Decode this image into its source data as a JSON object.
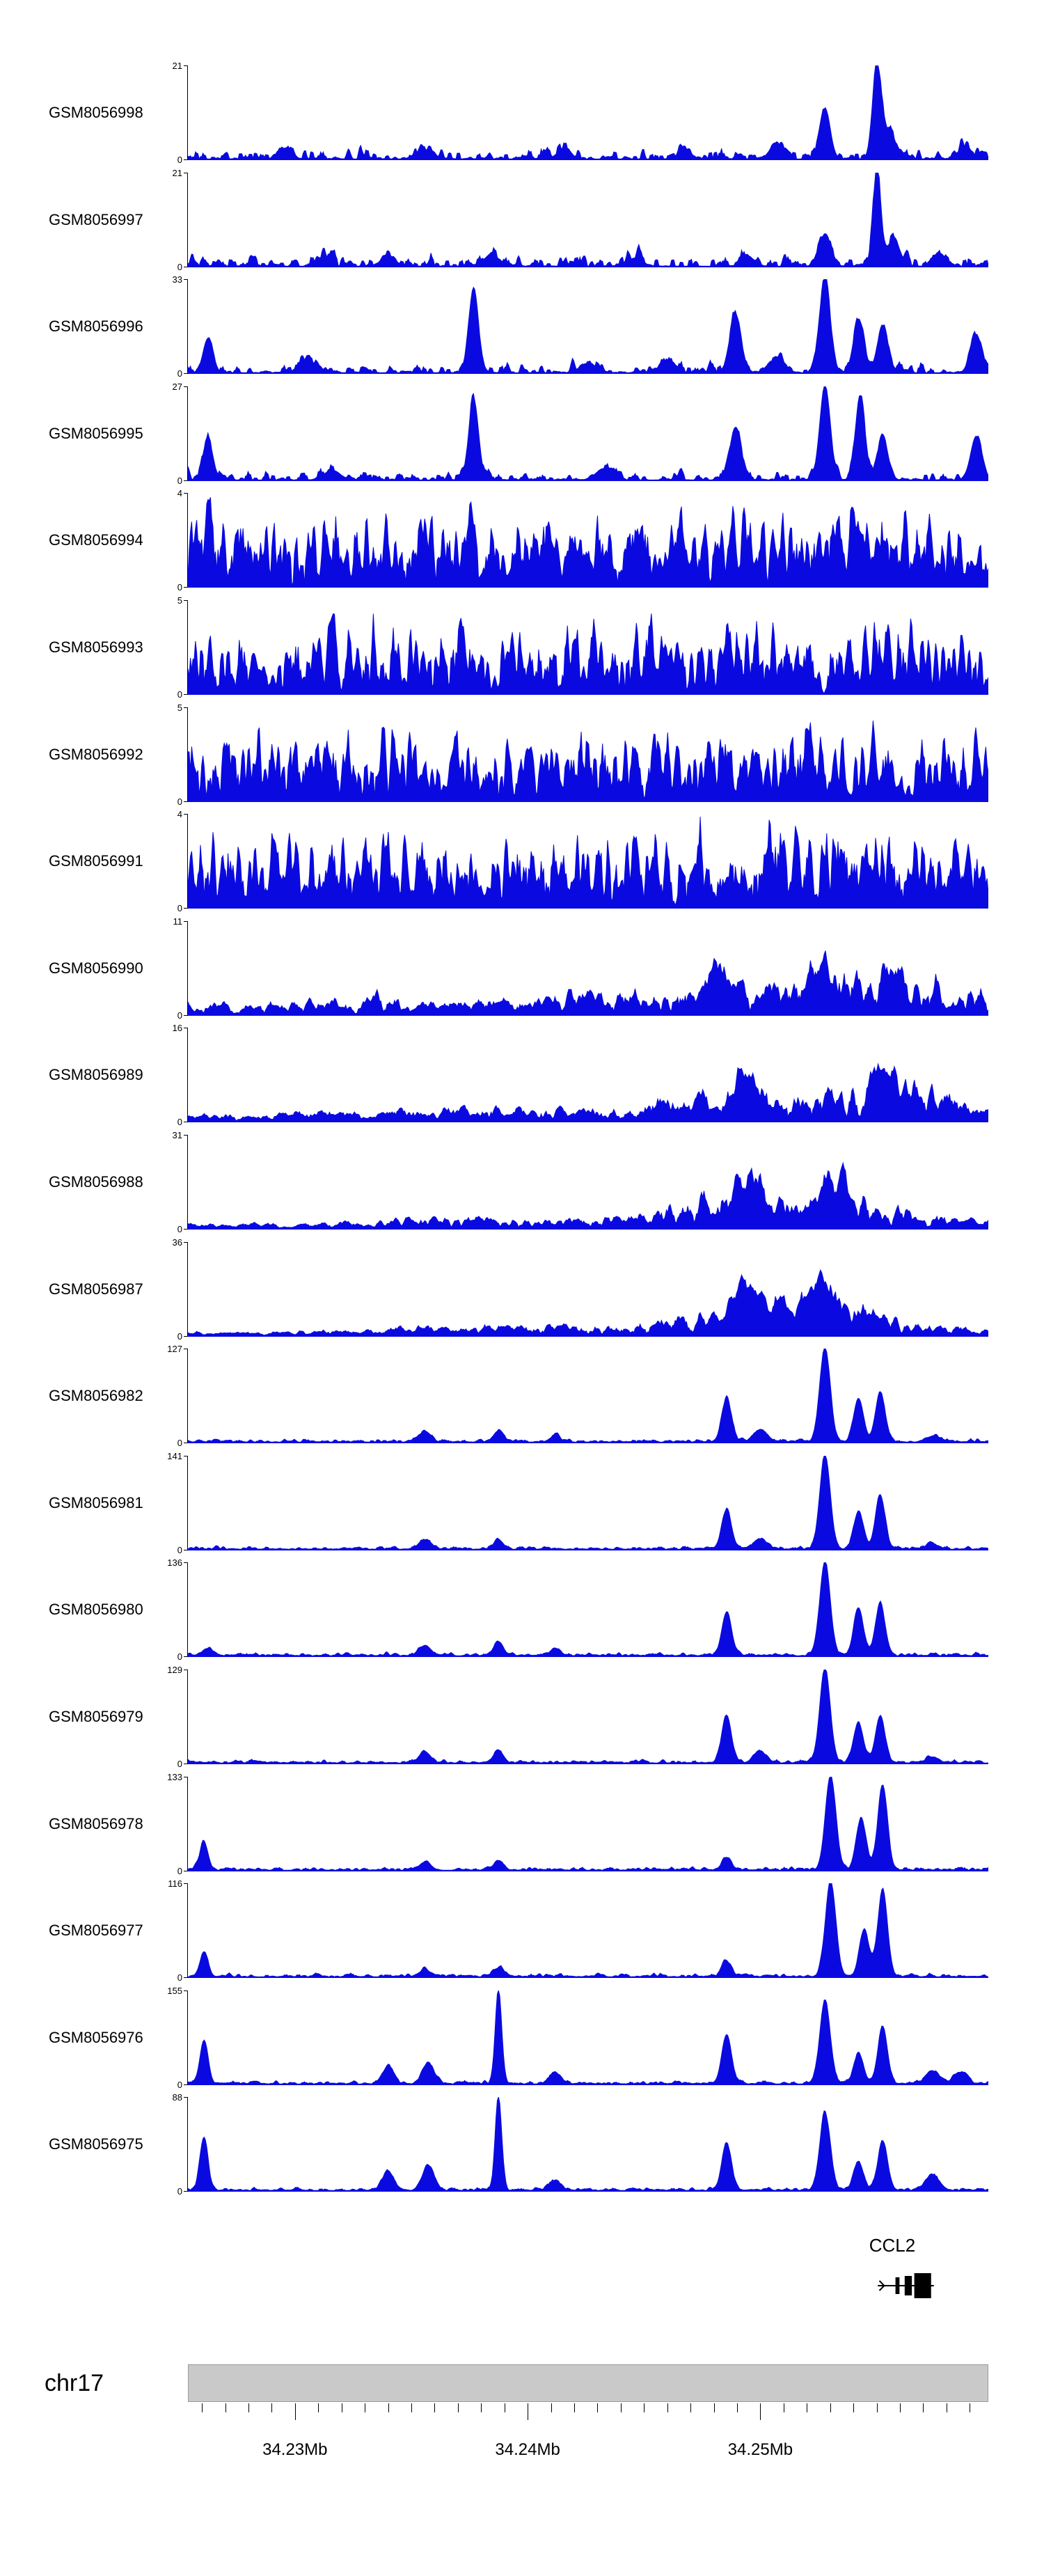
{
  "style": {
    "signal_color": "#0a0ae0",
    "axis_color": "#000000",
    "ideogram_fill": "#c9c9c9",
    "background": "#ffffff",
    "text_color": "#000000"
  },
  "chart_data": {
    "type": "area",
    "title": "",
    "description": "Genome-browser read-coverage tracks (20 GSM samples) over chr17 ~34.225-34.260 Mb around the CCL2 gene. Each track is a blue filled coverage signal with y-axis from 0 to the indicated max. Peaks are given as [position_fraction_of_window, height_fraction_of_ymax, width_fraction]; noise parameters describe the background signal texture.",
    "y_min_label": "0",
    "legend": "none",
    "grid": false,
    "tracks": [
      {
        "label": "GSM8056998",
        "ymax": 21,
        "seed": 101,
        "noise": 0.2,
        "noise_pow": 4.5,
        "smooth": 1,
        "peaks": [
          [
            0.12,
            0.1,
            0.008
          ],
          [
            0.3,
            0.09,
            0.008
          ],
          [
            0.47,
            0.11,
            0.008
          ],
          [
            0.62,
            0.09,
            0.008
          ],
          [
            0.735,
            0.16,
            0.008
          ],
          [
            0.796,
            0.52,
            0.0065
          ],
          [
            0.861,
            1.0,
            0.0055
          ],
          [
            0.878,
            0.26,
            0.007
          ],
          [
            0.97,
            0.12,
            0.008
          ]
        ]
      },
      {
        "label": "GSM8056997",
        "ymax": 21,
        "seed": 102,
        "noise": 0.2,
        "noise_pow": 4.5,
        "smooth": 1,
        "peaks": [
          [
            0.17,
            0.1,
            0.008
          ],
          [
            0.25,
            0.12,
            0.008
          ],
          [
            0.38,
            0.13,
            0.008
          ],
          [
            0.56,
            0.09,
            0.008
          ],
          [
            0.7,
            0.1,
            0.008
          ],
          [
            0.796,
            0.34,
            0.007
          ],
          [
            0.861,
            1.0,
            0.005
          ],
          [
            0.882,
            0.3,
            0.007
          ],
          [
            0.94,
            0.12,
            0.008
          ]
        ]
      },
      {
        "label": "GSM8056996",
        "ymax": 33,
        "seed": 103,
        "noise": 0.16,
        "noise_pow": 5,
        "smooth": 1,
        "peaks": [
          [
            0.025,
            0.36,
            0.006
          ],
          [
            0.15,
            0.12,
            0.01
          ],
          [
            0.357,
            0.88,
            0.006
          ],
          [
            0.5,
            0.1,
            0.01
          ],
          [
            0.6,
            0.12,
            0.01
          ],
          [
            0.684,
            0.62,
            0.007
          ],
          [
            0.735,
            0.14,
            0.01
          ],
          [
            0.796,
            1.0,
            0.0065
          ],
          [
            0.838,
            0.56,
            0.0065
          ],
          [
            0.868,
            0.5,
            0.0065
          ],
          [
            0.985,
            0.4,
            0.007
          ]
        ]
      },
      {
        "label": "GSM8056995",
        "ymax": 27,
        "seed": 104,
        "noise": 0.16,
        "noise_pow": 5,
        "smooth": 1,
        "peaks": [
          [
            0.025,
            0.42,
            0.006
          ],
          [
            0.18,
            0.1,
            0.01
          ],
          [
            0.357,
            0.86,
            0.006
          ],
          [
            0.52,
            0.12,
            0.01
          ],
          [
            0.684,
            0.55,
            0.007
          ],
          [
            0.796,
            1.0,
            0.0065
          ],
          [
            0.84,
            0.88,
            0.006
          ],
          [
            0.868,
            0.46,
            0.0065
          ],
          [
            0.985,
            0.46,
            0.007
          ]
        ]
      },
      {
        "label": "GSM8056994",
        "ymax": 4,
        "seed": 105,
        "noise": 1.0,
        "noise_pow": 1.5,
        "smooth": 1,
        "peaks": []
      },
      {
        "label": "GSM8056993",
        "ymax": 5,
        "seed": 106,
        "noise": 0.95,
        "noise_pow": 1.7,
        "smooth": 1,
        "peaks": []
      },
      {
        "label": "GSM8056992",
        "ymax": 5,
        "seed": 107,
        "noise": 0.95,
        "noise_pow": 1.7,
        "smooth": 1,
        "peaks": []
      },
      {
        "label": "GSM8056991",
        "ymax": 4,
        "seed": 108,
        "noise": 1.0,
        "noise_pow": 1.5,
        "smooth": 1,
        "peaks": []
      },
      {
        "label": "GSM8056990",
        "ymax": 11,
        "seed": 109,
        "noise": 0.7,
        "noise_pow": 1.9,
        "smooth": 2,
        "noise_env": [
          [
            0,
            0.3
          ],
          [
            0.15,
            0.35
          ],
          [
            0.22,
            0.55
          ],
          [
            0.3,
            0.5
          ],
          [
            0.42,
            0.45
          ],
          [
            0.5,
            0.55
          ],
          [
            0.6,
            0.65
          ],
          [
            0.68,
            0.8
          ],
          [
            0.78,
            1.0
          ],
          [
            0.9,
            1.0
          ],
          [
            1,
            0.75
          ]
        ],
        "peaks": [
          [
            0.66,
            0.25,
            0.012
          ],
          [
            0.79,
            0.3,
            0.012
          ],
          [
            0.88,
            0.3,
            0.012
          ]
        ]
      },
      {
        "label": "GSM8056989",
        "ymax": 16,
        "seed": 110,
        "noise": 0.65,
        "noise_pow": 1.9,
        "smooth": 2,
        "noise_env": [
          [
            0,
            0.18
          ],
          [
            0.15,
            0.25
          ],
          [
            0.3,
            0.35
          ],
          [
            0.45,
            0.4
          ],
          [
            0.55,
            0.5
          ],
          [
            0.63,
            0.7
          ],
          [
            0.72,
            0.85
          ],
          [
            0.8,
            0.8
          ],
          [
            0.87,
            1.0
          ],
          [
            0.93,
            0.85
          ],
          [
            1,
            0.5
          ]
        ],
        "peaks": [
          [
            0.7,
            0.3,
            0.015
          ],
          [
            0.87,
            0.45,
            0.01
          ]
        ]
      },
      {
        "label": "GSM8056988",
        "ymax": 31,
        "seed": 111,
        "noise": 0.6,
        "noise_pow": 1.8,
        "smooth": 2,
        "noise_env": [
          [
            0,
            0.15
          ],
          [
            0.2,
            0.18
          ],
          [
            0.3,
            0.35
          ],
          [
            0.4,
            0.3
          ],
          [
            0.5,
            0.28
          ],
          [
            0.58,
            0.5
          ],
          [
            0.65,
            0.9
          ],
          [
            0.72,
            1.0
          ],
          [
            0.82,
            1.0
          ],
          [
            0.88,
            0.7
          ],
          [
            0.95,
            0.35
          ],
          [
            1,
            0.25
          ]
        ],
        "peaks": [
          [
            0.7,
            0.35,
            0.02
          ],
          [
            0.8,
            0.3,
            0.02
          ]
        ]
      },
      {
        "label": "GSM8056987",
        "ymax": 36,
        "seed": 112,
        "noise": 0.6,
        "noise_pow": 1.8,
        "smooth": 2,
        "noise_env": [
          [
            0,
            0.12
          ],
          [
            0.2,
            0.15
          ],
          [
            0.3,
            0.3
          ],
          [
            0.42,
            0.28
          ],
          [
            0.52,
            0.3
          ],
          [
            0.6,
            0.55
          ],
          [
            0.68,
            1.0
          ],
          [
            0.78,
            0.95
          ],
          [
            0.85,
            0.75
          ],
          [
            0.93,
            0.4
          ],
          [
            1,
            0.2
          ]
        ],
        "peaks": [
          [
            0.7,
            0.4,
            0.02
          ],
          [
            0.79,
            0.3,
            0.02
          ]
        ]
      },
      {
        "label": "GSM8056982",
        "ymax": 127,
        "seed": 113,
        "noise": 0.05,
        "noise_pow": 3,
        "smooth": 1,
        "peaks": [
          [
            0.296,
            0.11,
            0.007
          ],
          [
            0.388,
            0.12,
            0.006
          ],
          [
            0.459,
            0.07,
            0.006
          ],
          [
            0.673,
            0.46,
            0.006
          ],
          [
            0.715,
            0.13,
            0.008
          ],
          [
            0.796,
            1.0,
            0.0065
          ],
          [
            0.838,
            0.46,
            0.006
          ],
          [
            0.865,
            0.52,
            0.006
          ],
          [
            0.93,
            0.06,
            0.008
          ]
        ]
      },
      {
        "label": "GSM8056981",
        "ymax": 141,
        "seed": 114,
        "noise": 0.05,
        "noise_pow": 3,
        "smooth": 1,
        "peaks": [
          [
            0.296,
            0.1,
            0.007
          ],
          [
            0.388,
            0.1,
            0.006
          ],
          [
            0.673,
            0.42,
            0.006
          ],
          [
            0.715,
            0.11,
            0.008
          ],
          [
            0.796,
            1.0,
            0.0065
          ],
          [
            0.838,
            0.4,
            0.006
          ],
          [
            0.865,
            0.56,
            0.006
          ],
          [
            0.93,
            0.05,
            0.008
          ]
        ]
      },
      {
        "label": "GSM8056980",
        "ymax": 136,
        "seed": 115,
        "noise": 0.05,
        "noise_pow": 3,
        "smooth": 1,
        "peaks": [
          [
            0.025,
            0.07,
            0.006
          ],
          [
            0.296,
            0.1,
            0.007
          ],
          [
            0.388,
            0.15,
            0.006
          ],
          [
            0.459,
            0.08,
            0.006
          ],
          [
            0.673,
            0.46,
            0.006
          ],
          [
            0.796,
            1.0,
            0.0065
          ],
          [
            0.838,
            0.5,
            0.006
          ],
          [
            0.865,
            0.55,
            0.006
          ]
        ]
      },
      {
        "label": "GSM8056979",
        "ymax": 129,
        "seed": 116,
        "noise": 0.05,
        "noise_pow": 3,
        "smooth": 1,
        "peaks": [
          [
            0.296,
            0.12,
            0.007
          ],
          [
            0.388,
            0.13,
            0.006
          ],
          [
            0.673,
            0.5,
            0.006
          ],
          [
            0.715,
            0.12,
            0.008
          ],
          [
            0.796,
            1.0,
            0.0065
          ],
          [
            0.838,
            0.42,
            0.006
          ],
          [
            0.865,
            0.5,
            0.006
          ],
          [
            0.93,
            0.06,
            0.008
          ]
        ]
      },
      {
        "label": "GSM8056978",
        "ymax": 133,
        "seed": 117,
        "noise": 0.05,
        "noise_pow": 3,
        "smooth": 1,
        "peaks": [
          [
            0.02,
            0.3,
            0.005
          ],
          [
            0.296,
            0.08,
            0.007
          ],
          [
            0.388,
            0.1,
            0.006
          ],
          [
            0.673,
            0.13,
            0.006
          ],
          [
            0.803,
            1.0,
            0.0065
          ],
          [
            0.841,
            0.55,
            0.006
          ],
          [
            0.868,
            0.9,
            0.006
          ]
        ]
      },
      {
        "label": "GSM8056977",
        "ymax": 116,
        "seed": 118,
        "noise": 0.05,
        "noise_pow": 3,
        "smooth": 1,
        "peaks": [
          [
            0.02,
            0.26,
            0.005
          ],
          [
            0.296,
            0.07,
            0.007
          ],
          [
            0.388,
            0.09,
            0.006
          ],
          [
            0.673,
            0.16,
            0.006
          ],
          [
            0.803,
            1.0,
            0.0065
          ],
          [
            0.845,
            0.5,
            0.006
          ],
          [
            0.868,
            0.92,
            0.006
          ]
        ]
      },
      {
        "label": "GSM8056976",
        "ymax": 155,
        "seed": 119,
        "noise": 0.05,
        "noise_pow": 3,
        "smooth": 1,
        "peaks": [
          [
            0.02,
            0.46,
            0.005
          ],
          [
            0.25,
            0.18,
            0.007
          ],
          [
            0.3,
            0.22,
            0.007
          ],
          [
            0.388,
            1.0,
            0.004
          ],
          [
            0.459,
            0.12,
            0.007
          ],
          [
            0.673,
            0.52,
            0.006
          ],
          [
            0.796,
            0.88,
            0.0065
          ],
          [
            0.838,
            0.32,
            0.006
          ],
          [
            0.868,
            0.6,
            0.006
          ],
          [
            0.93,
            0.14,
            0.008
          ],
          [
            0.965,
            0.12,
            0.008
          ]
        ]
      },
      {
        "label": "GSM8056975",
        "ymax": 88,
        "seed": 120,
        "noise": 0.05,
        "noise_pow": 3,
        "smooth": 1,
        "peaks": [
          [
            0.02,
            0.56,
            0.005
          ],
          [
            0.25,
            0.2,
            0.007
          ],
          [
            0.3,
            0.26,
            0.007
          ],
          [
            0.388,
            1.0,
            0.004
          ],
          [
            0.459,
            0.1,
            0.007
          ],
          [
            0.673,
            0.5,
            0.006
          ],
          [
            0.796,
            0.82,
            0.0065
          ],
          [
            0.838,
            0.3,
            0.006
          ],
          [
            0.868,
            0.52,
            0.006
          ],
          [
            0.93,
            0.16,
            0.008
          ]
        ]
      }
    ],
    "gene_track": {
      "gene": "CCL2",
      "strand": "+",
      "line": [
        0.862,
        0.932
      ],
      "arrow_x": 0.87,
      "exons": [
        [
          0.884,
          0.005,
          24
        ],
        [
          0.8955,
          0.009,
          28
        ],
        [
          0.9075,
          0.021,
          36
        ]
      ]
    },
    "ideogram": {
      "chromosome": "chr17"
    },
    "genome_axis": {
      "range_mb": [
        34.2254,
        34.2598
      ],
      "minor_interval_mb": 0.001,
      "major_ticks": [
        {
          "mb": 34.23,
          "label": "34.23Mb"
        },
        {
          "mb": 34.24,
          "label": "34.24Mb"
        },
        {
          "mb": 34.25,
          "label": "34.25Mb"
        }
      ]
    }
  }
}
